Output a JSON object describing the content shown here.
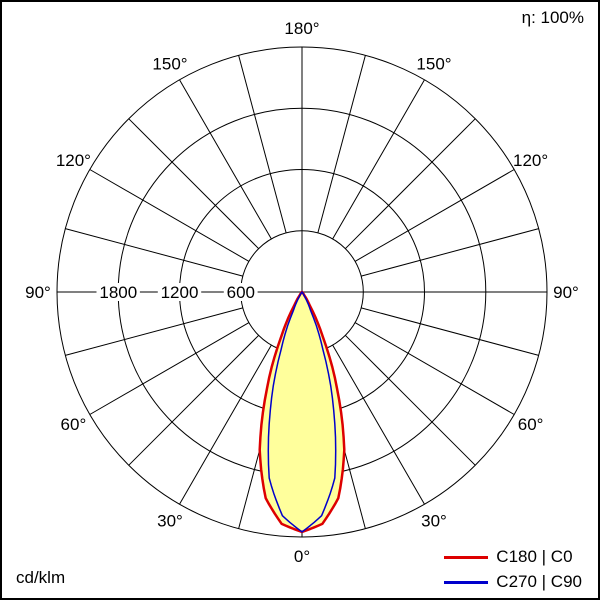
{
  "labels": {
    "eta": "η: 100%",
    "unit": "cd/klm"
  },
  "legend": [
    {
      "label": "C180 | C0",
      "color": "#dd0000"
    },
    {
      "label": "C270 | C90",
      "color": "#0000cc"
    }
  ],
  "chart_data": {
    "type": "polar",
    "subtype": "photometric-intensity-distribution",
    "unit": "cd/klm",
    "efficiency_label": "η: 100%",
    "gamma_zero_direction": "down",
    "radial_axis": {
      "max": 2400,
      "step": 600,
      "circles": [
        600,
        1200,
        1800,
        2400
      ],
      "grid_inner_radius_value": 600,
      "tick_labels": [
        {
          "value": 1800,
          "text": "1800"
        },
        {
          "value": 1200,
          "text": "1200"
        },
        {
          "value": 600,
          "text": "600"
        }
      ]
    },
    "angle_grid_step_deg": 15,
    "angle_labels": [
      {
        "text": "0°",
        "gamma": 0
      },
      {
        "text": "30°",
        "gamma": 30
      },
      {
        "text": "60°",
        "gamma": 60
      },
      {
        "text": "90°",
        "gamma": 90
      },
      {
        "text": "120°",
        "gamma": 120
      },
      {
        "text": "150°",
        "gamma": 150
      },
      {
        "text": "180°",
        "gamma": 180
      }
    ],
    "series": [
      {
        "name": "C180 | C0",
        "color": "#dd0000",
        "fill": "#ffff9c",
        "stroke_width": 2.5,
        "gamma": [
          0,
          5,
          10,
          15,
          20,
          25,
          30,
          35,
          40,
          45,
          50,
          60,
          70,
          80,
          90
        ],
        "values": [
          2350,
          2280,
          2050,
          1600,
          1000,
          480,
          150,
          40,
          15,
          8,
          5,
          3,
          2,
          1,
          0
        ]
      },
      {
        "name": "C270 | C90",
        "color": "#0000cc",
        "fill": "none",
        "stroke_width": 1.5,
        "gamma": [
          0,
          5,
          10,
          15,
          20,
          25,
          30,
          35,
          40,
          45,
          50,
          60,
          70,
          80,
          90
        ],
        "values": [
          2350,
          2200,
          1850,
          1200,
          600,
          200,
          50,
          15,
          5,
          2,
          1,
          0,
          0,
          0,
          0
        ]
      }
    ]
  }
}
